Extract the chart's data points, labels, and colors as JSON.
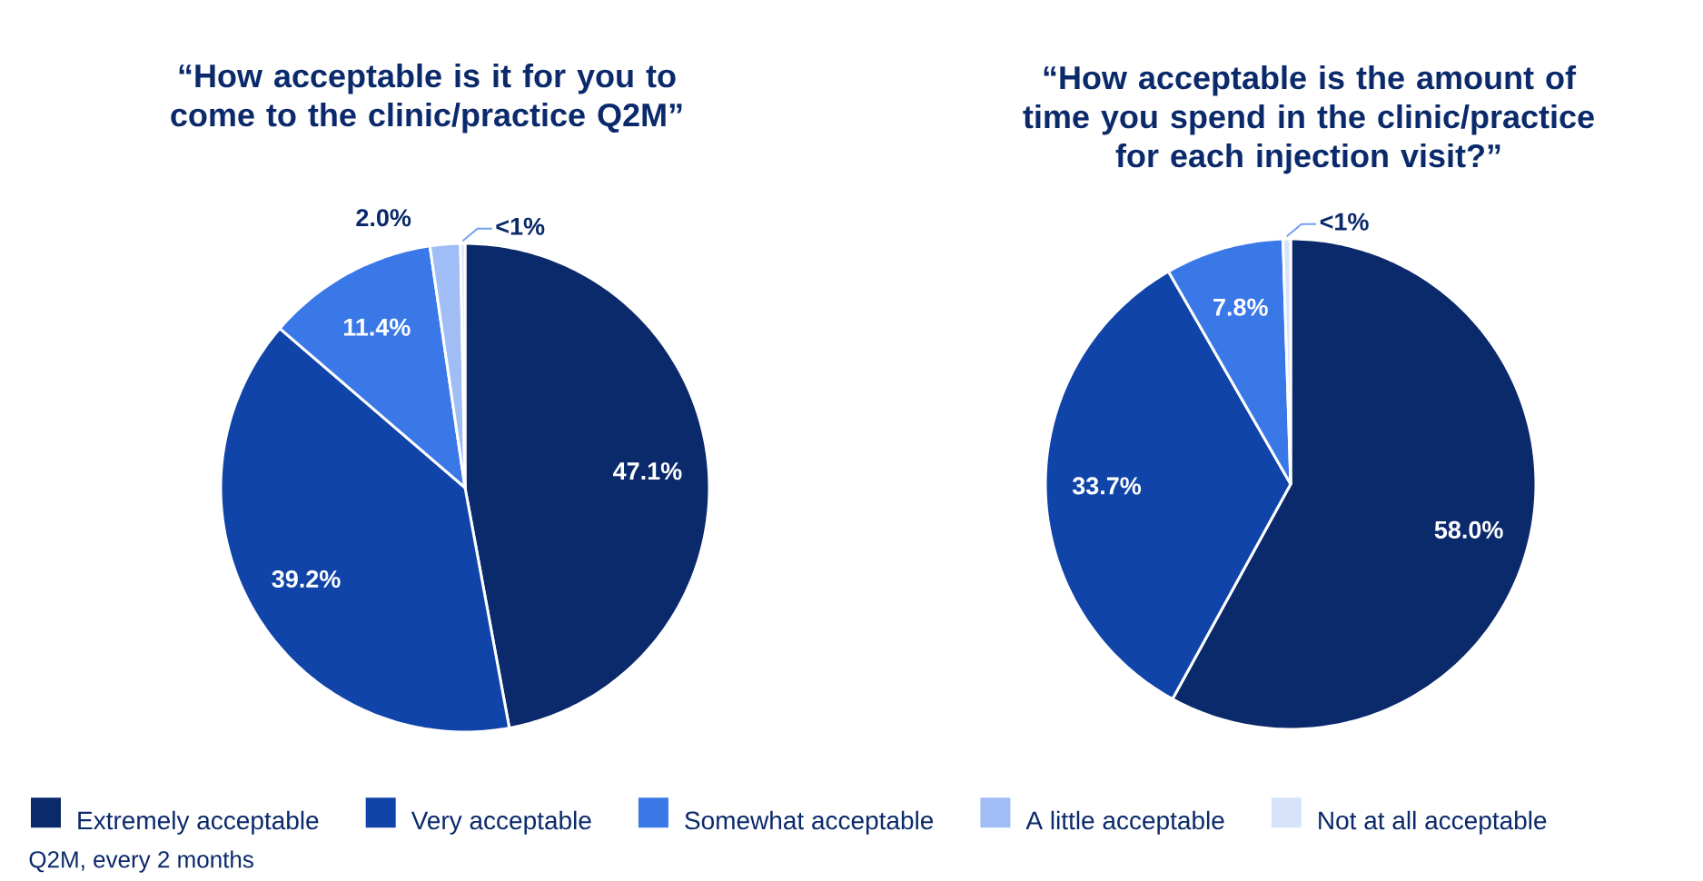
{
  "chart_data": [
    {
      "type": "pie",
      "title": "“How acceptable is it for you to come to the clinic/practice Q2M”",
      "categories": [
        "Extremely acceptable",
        "Very acceptable",
        "Somewhat acceptable",
        "A little acceptable",
        "Not at all acceptable"
      ],
      "values": [
        47.1,
        39.2,
        11.4,
        2.0,
        0.3
      ],
      "value_labels": [
        "47.1%",
        "39.2%",
        "11.4%",
        "2.0%",
        "<1%"
      ],
      "colors": [
        "#0b2a6b",
        "#1044a8",
        "#3b78e7",
        "#a0bdf5",
        "#d6e3fb"
      ],
      "legend": "bottom",
      "annotations": [
        "Q2M, every 2 months"
      ]
    },
    {
      "type": "pie",
      "title": "“How acceptable is the amount of time you spend in the clinic/practice for each injection visit?”",
      "categories": [
        null,
        null,
        null,
        null,
        null
      ],
      "values": [
        58.0,
        33.7,
        7.8,
        0,
        0.5
      ],
      "value_labels": [
        "58.0%",
        "33.7%",
        "7.8%",
        null,
        "<1%"
      ],
      "colors": [
        "#0b2a6b",
        "#1044a8",
        "#3b78e7",
        "#a0bdf5",
        "#d6e3fb"
      ]
    }
  ]
}
